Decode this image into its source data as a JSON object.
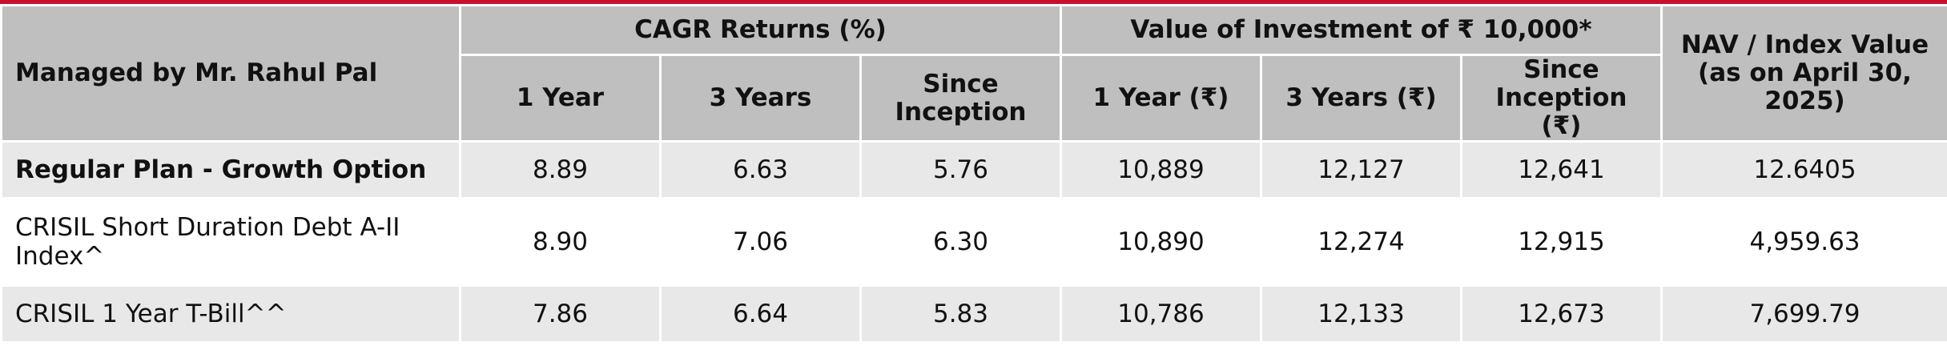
{
  "table": {
    "manager_label": "Managed by Mr. Rahul Pal",
    "group_headers": {
      "cagr": "CAGR Returns (%)",
      "value": "Value of Investment of ₹ 10,000*",
      "nav": "NAV / Index Value (as on April 30, 2025)"
    },
    "sub_headers": {
      "cagr_1y": "1 Year",
      "cagr_3y": "3 Years",
      "cagr_si": "Since Inception",
      "val_1y": "1 Year (₹)",
      "val_3y": "3 Years (₹)",
      "val_si": "Since Inception (₹)"
    },
    "rows": [
      {
        "label": "Regular Plan - Growth Option",
        "cagr_1y": "8.89",
        "cagr_3y": "6.63",
        "cagr_si": "5.76",
        "val_1y": "10,889",
        "val_3y": "12,127",
        "val_si": "12,641",
        "nav": "12.6405"
      },
      {
        "label": "CRISIL Short Duration Debt A-II Index^",
        "cagr_1y": "8.90",
        "cagr_3y": "7.06",
        "cagr_si": "6.30",
        "val_1y": "10,890",
        "val_3y": "12,274",
        "val_si": "12,915",
        "nav": "4,959.63"
      },
      {
        "label": "CRISIL 1 Year T-Bill^^",
        "cagr_1y": "7.86",
        "cagr_3y": "6.64",
        "cagr_si": "5.83",
        "val_1y": "10,786",
        "val_3y": "12,133",
        "val_si": "12,673",
        "nav": "7,699.79"
      }
    ]
  },
  "colors": {
    "accent_line": "#c8102e",
    "header_bg": "#bfbfbf",
    "row_shaded_bg": "#e8e8e8"
  }
}
